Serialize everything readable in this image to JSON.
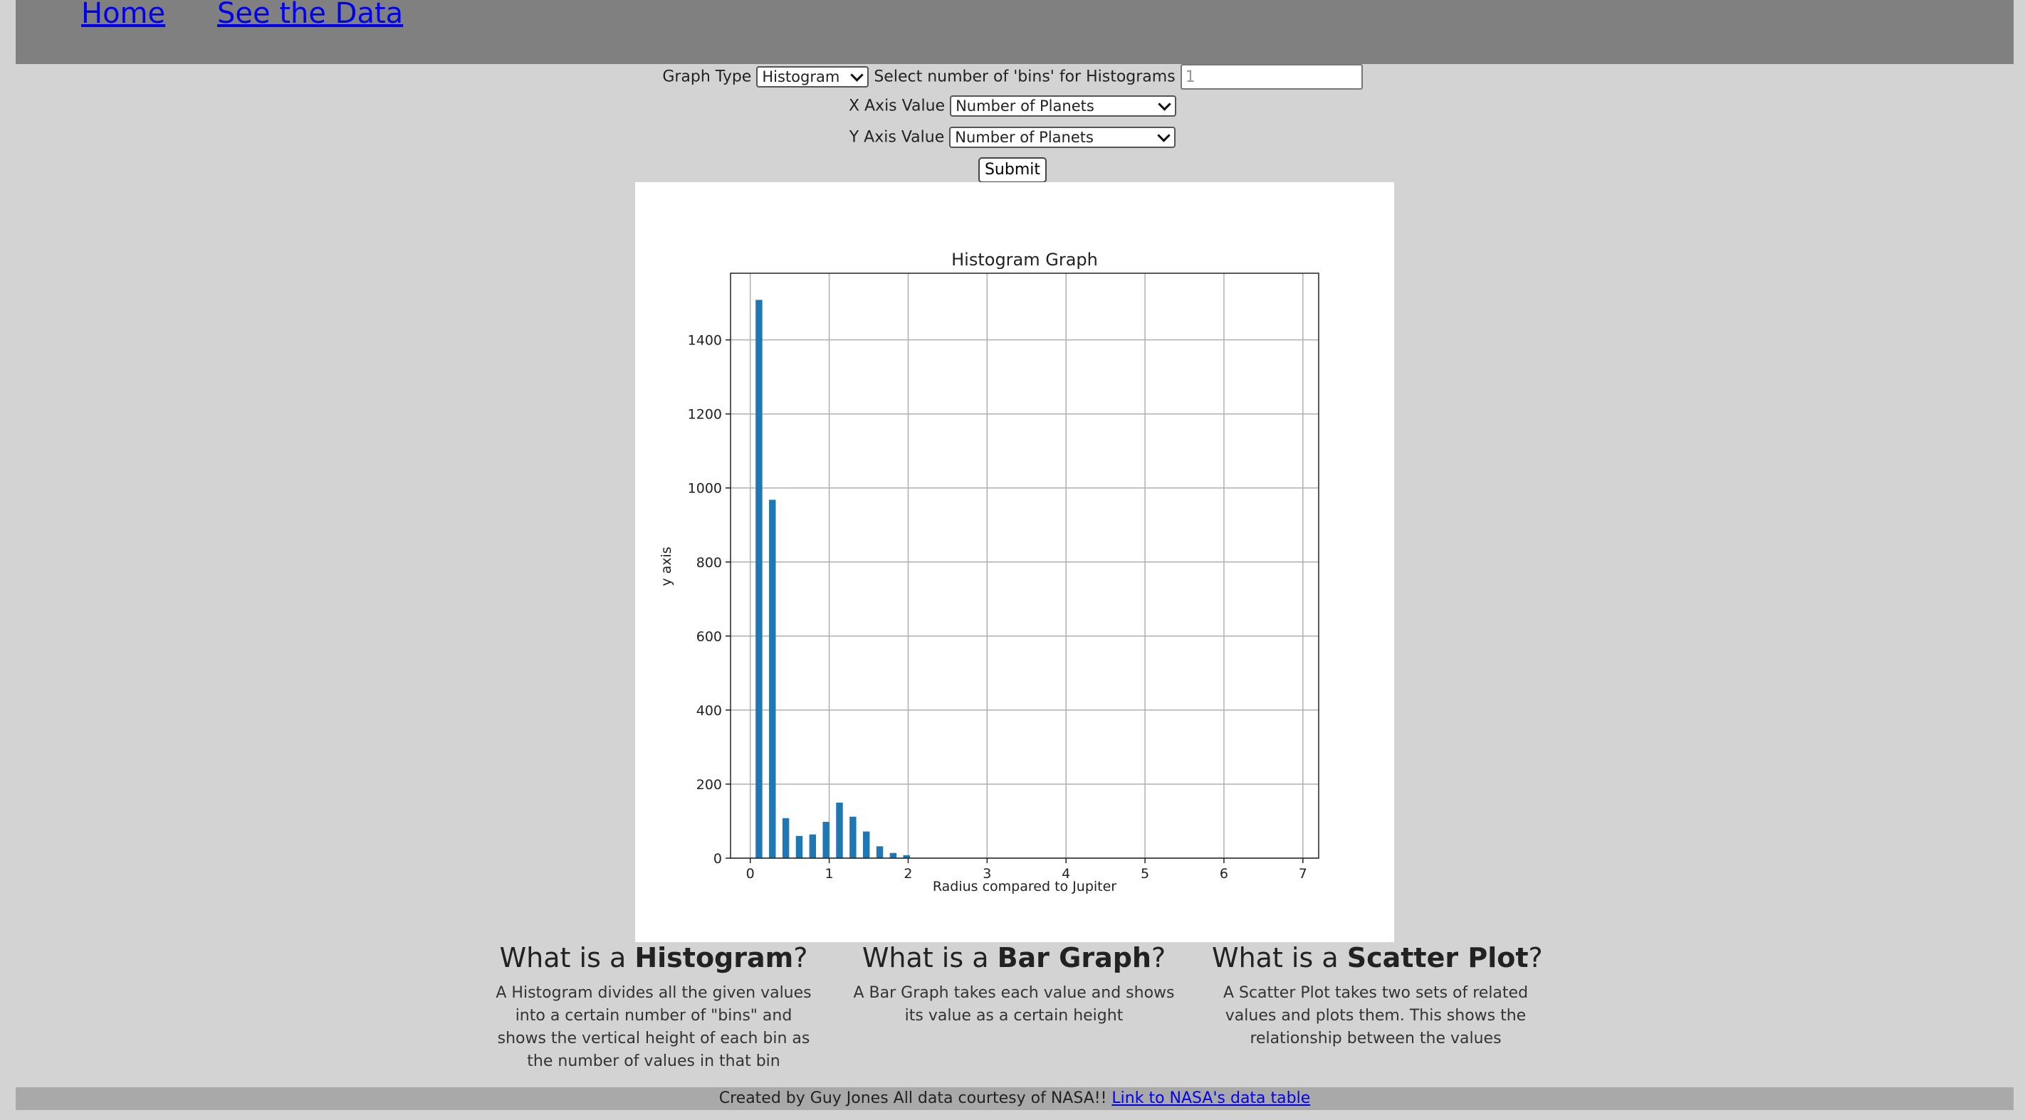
{
  "nav": {
    "home": "Home",
    "see_data": "See the Data"
  },
  "form": {
    "graph_type_label": "Graph Type",
    "graph_type_value": "Histogram",
    "bins_label": "Select number of 'bins' for Histograms",
    "bins_placeholder": "1",
    "x_axis_label": "X Axis Value",
    "x_axis_value": "Number of Planets",
    "y_axis_label": "Y Axis Value",
    "y_axis_value": "Number of Planets",
    "submit_label": "Submit"
  },
  "chart_data": {
    "type": "bar",
    "title": "Histogram Graph",
    "xlabel": "Radius compared to Jupiter",
    "ylabel": "y axis",
    "xlim": [
      -0.25,
      7.2
    ],
    "ylim": [
      0,
      1580
    ],
    "xticks": [
      0,
      1,
      2,
      3,
      4,
      5,
      6,
      7
    ],
    "yticks": [
      0,
      200,
      400,
      600,
      800,
      1000,
      1200,
      1400
    ],
    "grid": true,
    "bar_color": "#1f77b4",
    "bin_width": 0.17,
    "bar_width_fraction": 0.5,
    "bins": [
      {
        "x": 0.11,
        "value": 1508
      },
      {
        "x": 0.28,
        "value": 968
      },
      {
        "x": 0.45,
        "value": 108
      },
      {
        "x": 0.62,
        "value": 60
      },
      {
        "x": 0.79,
        "value": 64
      },
      {
        "x": 0.96,
        "value": 98
      },
      {
        "x": 1.13,
        "value": 150
      },
      {
        "x": 1.3,
        "value": 112
      },
      {
        "x": 1.47,
        "value": 72
      },
      {
        "x": 1.64,
        "value": 32
      },
      {
        "x": 1.81,
        "value": 14
      },
      {
        "x": 1.98,
        "value": 8
      }
    ]
  },
  "info": [
    {
      "prefix": "What is a ",
      "term": "Histogram",
      "suffix": "?",
      "description": "A Histogram divides all the given values into a certain number of \"bins\" and shows the vertical height of each bin as the number of values in that bin"
    },
    {
      "prefix": "What is a ",
      "term": "Bar Graph",
      "suffix": "?",
      "description": "A Bar Graph takes each value and shows its value as a certain height"
    },
    {
      "prefix": "What is a ",
      "term": "Scatter Plot",
      "suffix": "?",
      "description": "A Scatter Plot takes two sets of related values and plots them. This shows the relationship between the values"
    }
  ],
  "footer": {
    "text": "Created by Guy Jones All data courtesy of NASA!! ",
    "link": "Link to NASA's data table"
  }
}
